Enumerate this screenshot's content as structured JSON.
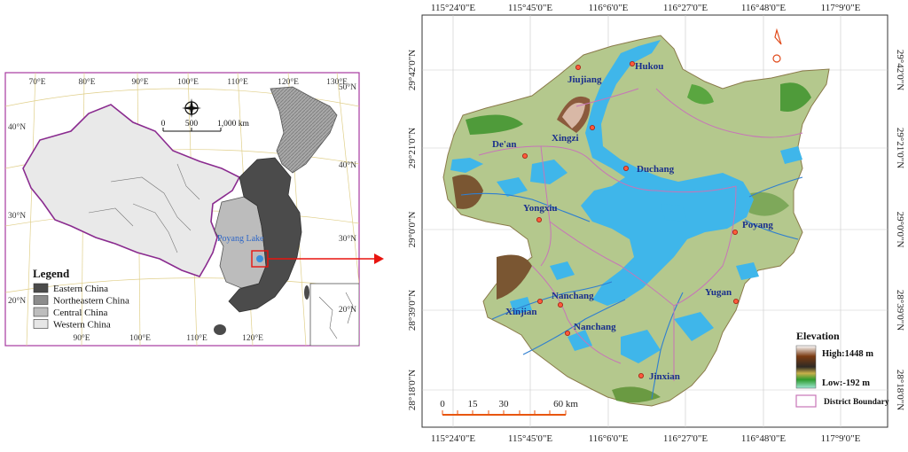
{
  "china_map": {
    "lon_labels_top": [
      "70°E",
      "80°E",
      "90°E",
      "100°E",
      "110°E",
      "120°E",
      "130°E"
    ],
    "lon_labels_bottom": [
      "90°E",
      "100°E",
      "110°E",
      "120°E"
    ],
    "lat_labels_left": [
      "40°N",
      "30°N",
      "20°N"
    ],
    "lat_labels_right": [
      "50°N",
      "40°N",
      "30°N",
      "20°N"
    ],
    "scale_labels": [
      "0",
      "500",
      "1,000 km"
    ],
    "lake_label": "Poyang Lake",
    "legend": {
      "title": "Legend",
      "items": [
        {
          "label": "Eastern China",
          "color": "#4b4b4b"
        },
        {
          "label": "Northeastern China",
          "color": "#8c8c8c"
        },
        {
          "label": "Central China",
          "color": "#bdbdbd"
        },
        {
          "label": "Western China",
          "color": "#e6e6e6"
        }
      ]
    }
  },
  "detail_map": {
    "lon_labels": [
      "115°24'0\"E",
      "115°45'0\"E",
      "116°6'0\"E",
      "116°27'0\"E",
      "116°48'0\"E",
      "117°9'0\"E"
    ],
    "lat_labels": [
      "29°42'0\"N",
      "29°21'0\"N",
      "29°0'0\"N",
      "28°39'0\"N",
      "28°18'0\"N"
    ],
    "cities": [
      "Hukou",
      "Jiujiang",
      "Xingzi",
      "De'an",
      "Duchang",
      "Yongxiu",
      "Poyang",
      "Nanchang",
      "Yugan",
      "Xinjian",
      "Nanchang",
      "Jinxian"
    ],
    "scale_labels": [
      "0",
      "15",
      "30",
      "60 km"
    ],
    "elevation": {
      "title": "Elevation",
      "high": "High:1448 m",
      "low": "Low:-192 m"
    },
    "district_boundary": "District Boundary"
  },
  "colors": {
    "water": "#3fb6ea",
    "land": "#b4c88d",
    "boundary": "#c775b8",
    "outline_purple": "#8a2b8f",
    "pointer": "#e8140f"
  }
}
